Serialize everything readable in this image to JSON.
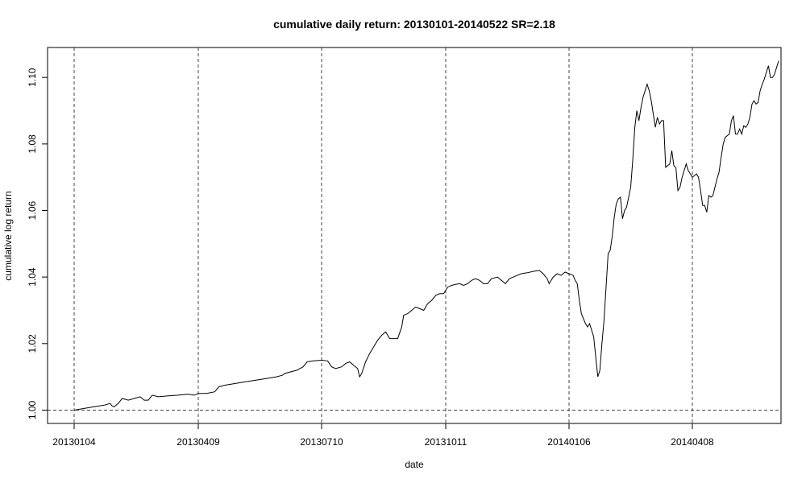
{
  "chart_data": {
    "type": "line",
    "title": "cumulative daily return: 20130101-20140522 SR=2.18",
    "xlabel": "date",
    "ylabel": "cumulative log return",
    "ylim": [
      0.996,
      1.109
    ],
    "y_ticks": [
      1.0,
      1.02,
      1.04,
      1.06,
      1.08,
      1.1
    ],
    "y_tick_labels": [
      "1.00",
      "1.02",
      "1.04",
      "1.06",
      "1.08",
      "1.10"
    ],
    "x_ticks": [
      "20130104",
      "20130409",
      "20130710",
      "20131011",
      "20140106",
      "20140408"
    ],
    "grid": "vertical dashed lines at x ticks; horizontal dashed reference line at 1.00",
    "legend": "none",
    "line_color": "#000000",
    "grid_color": "#444444",
    "series": [
      {
        "points": [
          [
            0,
            1.0
          ],
          [
            5,
            1.0005
          ],
          [
            10,
            1.001
          ],
          [
            15,
            1.0015
          ],
          [
            18,
            1.002
          ],
          [
            19,
            1.0012
          ],
          [
            20,
            1.001
          ],
          [
            22,
            1.002
          ],
          [
            24,
            1.0035
          ],
          [
            27,
            1.003
          ],
          [
            30,
            1.0035
          ],
          [
            33,
            1.004
          ],
          [
            35,
            1.003
          ],
          [
            37,
            1.003
          ],
          [
            39,
            1.0045
          ],
          [
            42,
            1.004
          ],
          [
            47,
            1.0043
          ],
          [
            52,
            1.0045
          ],
          [
            57,
            1.0048
          ],
          [
            60,
            1.0045
          ],
          [
            62,
            1.005
          ],
          [
            66,
            1.005
          ],
          [
            70,
            1.0055
          ],
          [
            72,
            1.007
          ],
          [
            75,
            1.0075
          ],
          [
            80,
            1.008
          ],
          [
            85,
            1.0085
          ],
          [
            90,
            1.009
          ],
          [
            95,
            1.0095
          ],
          [
            100,
            1.01
          ],
          [
            103,
            1.0105
          ],
          [
            104,
            1.011
          ],
          [
            107,
            1.0115
          ],
          [
            110,
            1.012
          ],
          [
            113,
            1.013
          ],
          [
            115,
            1.0145
          ],
          [
            118,
            1.0148
          ],
          [
            122,
            1.015
          ],
          [
            125,
            1.0148
          ],
          [
            127,
            1.013
          ],
          [
            129,
            1.0125
          ],
          [
            132,
            1.013
          ],
          [
            134,
            1.014
          ],
          [
            136,
            1.0145
          ],
          [
            138,
            1.0135
          ],
          [
            140,
            1.0125
          ],
          [
            141,
            1.01
          ],
          [
            142,
            1.011
          ],
          [
            144,
            1.0145
          ],
          [
            146,
            1.017
          ],
          [
            148,
            1.019
          ],
          [
            150,
            1.021
          ],
          [
            152,
            1.0225
          ],
          [
            154,
            1.0235
          ],
          [
            156,
            1.0215
          ],
          [
            158,
            1.0215
          ],
          [
            160,
            1.0215
          ],
          [
            162,
            1.025
          ],
          [
            163,
            1.0285
          ],
          [
            165,
            1.029
          ],
          [
            167,
            1.03
          ],
          [
            169,
            1.031
          ],
          [
            171,
            1.0305
          ],
          [
            173,
            1.03
          ],
          [
            175,
            1.032
          ],
          [
            177,
            1.033
          ],
          [
            179,
            1.0345
          ],
          [
            181,
            1.035
          ],
          [
            183,
            1.035
          ],
          [
            185,
            1.037
          ],
          [
            187,
            1.0375
          ],
          [
            189,
            1.0378
          ],
          [
            191,
            1.038
          ],
          [
            193,
            1.0375
          ],
          [
            195,
            1.038
          ],
          [
            197,
            1.039
          ],
          [
            199,
            1.0395
          ],
          [
            201,
            1.039
          ],
          [
            203,
            1.038
          ],
          [
            205,
            1.038
          ],
          [
            207,
            1.0395
          ],
          [
            210,
            1.04
          ],
          [
            212,
            1.039
          ],
          [
            214,
            1.038
          ],
          [
            216,
            1.0395
          ],
          [
            218,
            1.04
          ],
          [
            220,
            1.0405
          ],
          [
            222,
            1.041
          ],
          [
            225,
            1.0413
          ],
          [
            228,
            1.0417
          ],
          [
            231,
            1.042
          ],
          [
            233,
            1.041
          ],
          [
            235,
            1.0395
          ],
          [
            236,
            1.038
          ],
          [
            238,
            1.04
          ],
          [
            240,
            1.041
          ],
          [
            242,
            1.0405
          ],
          [
            244,
            1.0415
          ],
          [
            246,
            1.041
          ],
          [
            248,
            1.0405
          ],
          [
            249,
            1.039
          ],
          [
            250,
            1.038
          ],
          [
            251,
            1.033
          ],
          [
            252,
            1.029
          ],
          [
            254,
            1.026
          ],
          [
            255,
            1.025
          ],
          [
            256,
            1.026
          ],
          [
            258,
            1.022
          ],
          [
            259,
            1.016
          ],
          [
            260,
            1.01
          ],
          [
            261,
            1.012
          ],
          [
            262,
            1.02
          ],
          [
            263,
            1.027
          ],
          [
            265,
            1.047
          ],
          [
            266,
            1.048
          ],
          [
            267,
            1.052
          ],
          [
            268,
            1.058
          ],
          [
            269,
            1.062
          ],
          [
            270,
            1.0635
          ],
          [
            271,
            1.064
          ],
          [
            272,
            1.0575
          ],
          [
            273,
            1.06
          ],
          [
            274,
            1.061
          ],
          [
            276,
            1.067
          ],
          [
            277,
            1.075
          ],
          [
            278,
            1.085
          ],
          [
            279,
            1.09
          ],
          [
            280,
            1.087
          ],
          [
            281,
            1.091
          ],
          [
            282,
            1.094
          ],
          [
            283,
            1.096
          ],
          [
            284,
            1.098
          ],
          [
            285,
            1.096
          ],
          [
            286,
            1.093
          ],
          [
            287,
            1.089
          ],
          [
            288,
            1.085
          ],
          [
            289,
            1.088
          ],
          [
            290,
            1.086
          ],
          [
            291,
            1.087
          ],
          [
            292,
            1.087
          ],
          [
            293,
            1.073
          ],
          [
            294,
            1.0735
          ],
          [
            295,
            1.074
          ],
          [
            296,
            1.078
          ],
          [
            297,
            1.0735
          ],
          [
            298,
            1.0728
          ],
          [
            299,
            1.066
          ],
          [
            300,
            1.067
          ],
          [
            301,
            1.07
          ],
          [
            302,
            1.072
          ],
          [
            303,
            1.074
          ],
          [
            304,
            1.072
          ],
          [
            305,
            1.071
          ],
          [
            306,
            1.07
          ],
          [
            307,
            1.0705
          ],
          [
            308,
            1.071
          ],
          [
            309,
            1.07
          ],
          [
            310,
            1.066
          ],
          [
            311,
            1.0615
          ],
          [
            312,
            1.0615
          ],
          [
            313,
            1.0595
          ],
          [
            314,
            1.0645
          ],
          [
            315,
            1.064
          ],
          [
            316,
            1.0645
          ],
          [
            317,
            1.067
          ],
          [
            318,
            1.0695
          ],
          [
            319,
            1.0715
          ],
          [
            320,
            1.076
          ],
          [
            321,
            1.08
          ],
          [
            322,
            1.082
          ],
          [
            323,
            1.0825
          ],
          [
            324,
            1.083
          ],
          [
            325,
            1.087
          ],
          [
            326,
            1.0885
          ],
          [
            327,
            1.083
          ],
          [
            328,
            1.083
          ],
          [
            329,
            1.0845
          ],
          [
            330,
            1.083
          ],
          [
            331,
            1.0855
          ],
          [
            332,
            1.085
          ],
          [
            333,
            1.086
          ],
          [
            334,
            1.088
          ],
          [
            335,
            1.092
          ],
          [
            336,
            1.093
          ],
          [
            337,
            1.092
          ],
          [
            338,
            1.0925
          ],
          [
            339,
            1.096
          ],
          [
            340,
            1.098
          ],
          [
            341,
            1.0995
          ],
          [
            342,
            1.1015
          ],
          [
            343,
            1.1035
          ],
          [
            344,
            1.1
          ],
          [
            345,
            1.1
          ],
          [
            346,
            1.101
          ],
          [
            347,
            1.103
          ],
          [
            348,
            1.105
          ]
        ]
      }
    ]
  }
}
